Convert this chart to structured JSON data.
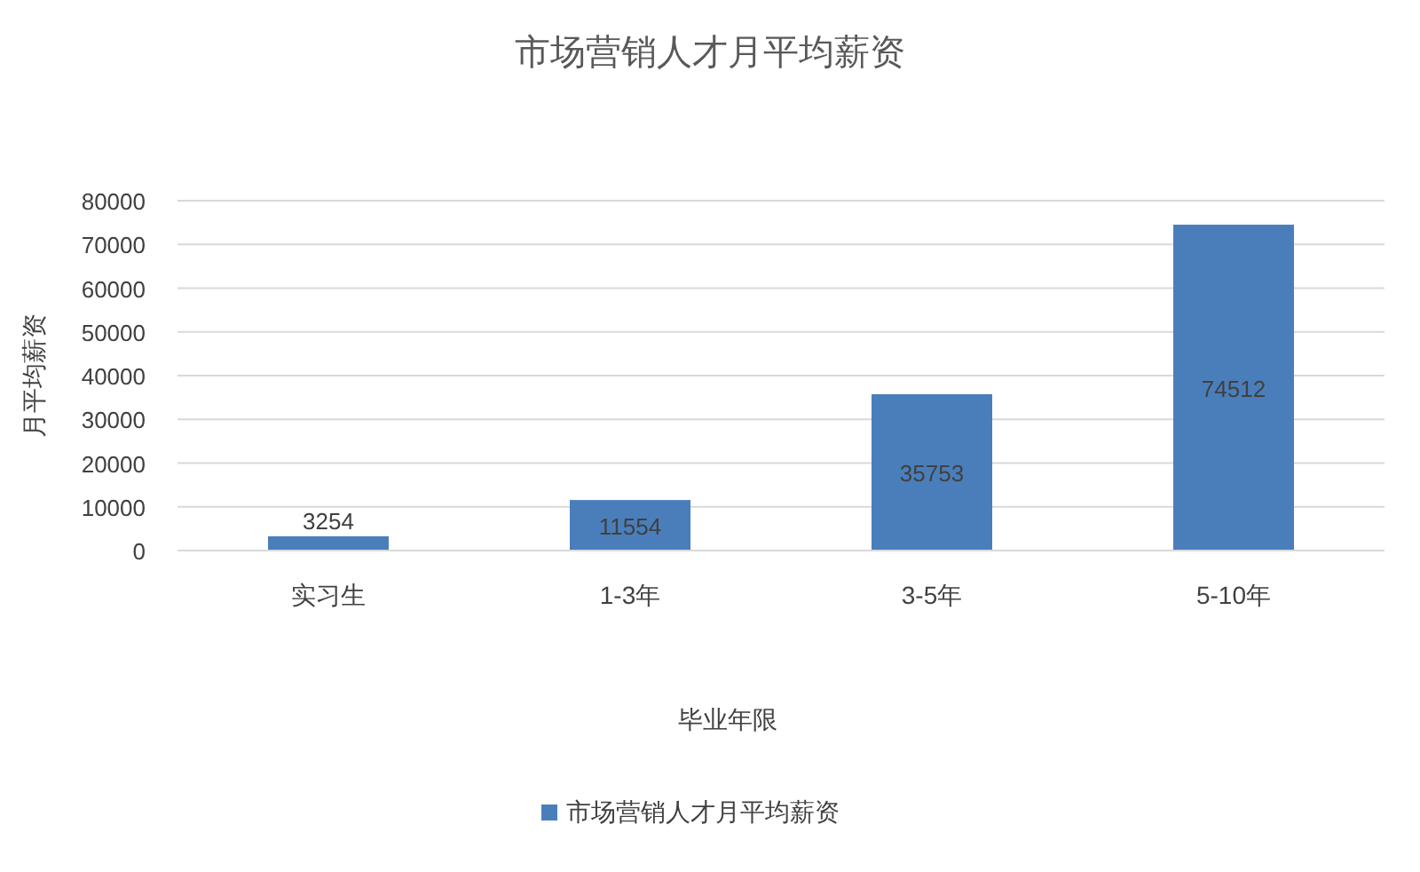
{
  "chart_data": {
    "type": "bar",
    "title": "市场营销人才月平均薪资",
    "xlabel": "毕业年限",
    "ylabel": "月平均薪资",
    "categories": [
      "实习生",
      "1-3年",
      "3-5年",
      "5-10年"
    ],
    "series": [
      {
        "name": "市场营销人才月平均薪资",
        "color": "#4a7ebb",
        "values": [
          3254,
          11554,
          35753,
          74512
        ]
      }
    ],
    "ylim": [
      0,
      80000
    ],
    "yticks": [
      0,
      10000,
      20000,
      30000,
      40000,
      50000,
      60000,
      70000,
      80000
    ],
    "grid": "y",
    "legend": "bottom",
    "data_labels": true
  }
}
